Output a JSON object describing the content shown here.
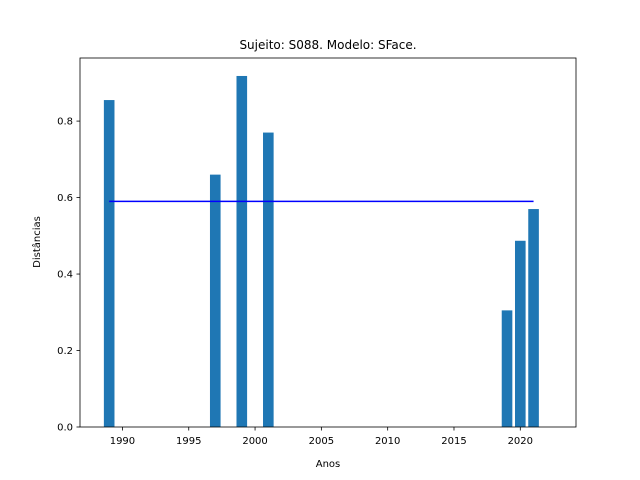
{
  "chart_data": {
    "type": "bar",
    "title": "Sujeito: S088. Modelo: SFace.",
    "xlabel": "Anos",
    "ylabel": "Distâncias",
    "x": [
      1989,
      1997,
      1999,
      2001,
      2019,
      2020,
      2021
    ],
    "values": [
      0.855,
      0.66,
      0.918,
      0.77,
      0.305,
      0.487,
      0.57
    ],
    "mean_line": {
      "value": 0.59,
      "x_range": [
        1989,
        2021
      ],
      "color": "#0000ff"
    },
    "xlim": [
      1986.8,
      2024.2
    ],
    "ylim": [
      0,
      0.965
    ],
    "xticks": [
      1990,
      1995,
      2000,
      2005,
      2010,
      2015,
      2020
    ],
    "yticks": [
      0.0,
      0.2,
      0.4,
      0.6,
      0.8
    ],
    "ytick_labels": [
      "0.0",
      "0.2",
      "0.4",
      "0.6",
      "0.8"
    ],
    "bar_color": "#1f77b4",
    "grid": false,
    "legend": "none"
  }
}
